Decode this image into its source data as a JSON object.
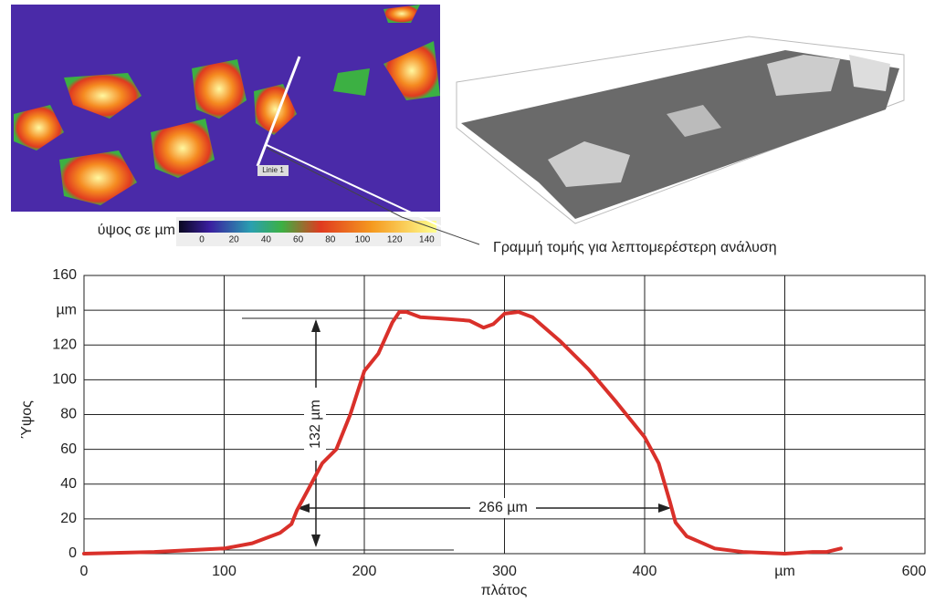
{
  "chart_data": {
    "type": "line",
    "x": [
      0,
      50,
      100,
      120,
      140,
      148,
      152,
      160,
      170,
      180,
      190,
      200,
      210,
      220,
      225,
      230,
      240,
      260,
      275,
      285,
      292,
      300,
      310,
      320,
      340,
      360,
      380,
      400,
      410,
      418,
      422,
      430,
      450,
      470,
      500,
      520,
      530,
      540
    ],
    "values": [
      0,
      1,
      3,
      6,
      12,
      17,
      25,
      37,
      52,
      60,
      80,
      105,
      115,
      133,
      139,
      139,
      136,
      135,
      134,
      130,
      132,
      138,
      139,
      136,
      122,
      106,
      87,
      67,
      52,
      30,
      18,
      10,
      3,
      1,
      0,
      1,
      1,
      3
    ],
    "color": "#d9302a",
    "xlim": [
      0,
      600
    ],
    "ylim": [
      0,
      160
    ],
    "xticks": [
      0,
      100,
      200,
      300,
      400,
      {
        "value": 500,
        "label": "µm"
      },
      600
    ],
    "yticks": [
      0,
      20,
      40,
      60,
      80,
      100,
      120,
      {
        "value": 140,
        "label": "µm"
      },
      160
    ],
    "grid": true,
    "x_label": "πλάτος",
    "y_label": "Ύψος",
    "annotations": [
      "132 µm",
      "266 µm"
    ]
  },
  "figure": {
    "colorbar_label": "ύψος σε µm",
    "colorbar_ticks": [
      0,
      20,
      40,
      60,
      80,
      100,
      120,
      140
    ],
    "line_label": "Linie 1",
    "callout": "Γραμμή τομής για λεπτομερέστερη ανάλυση"
  }
}
